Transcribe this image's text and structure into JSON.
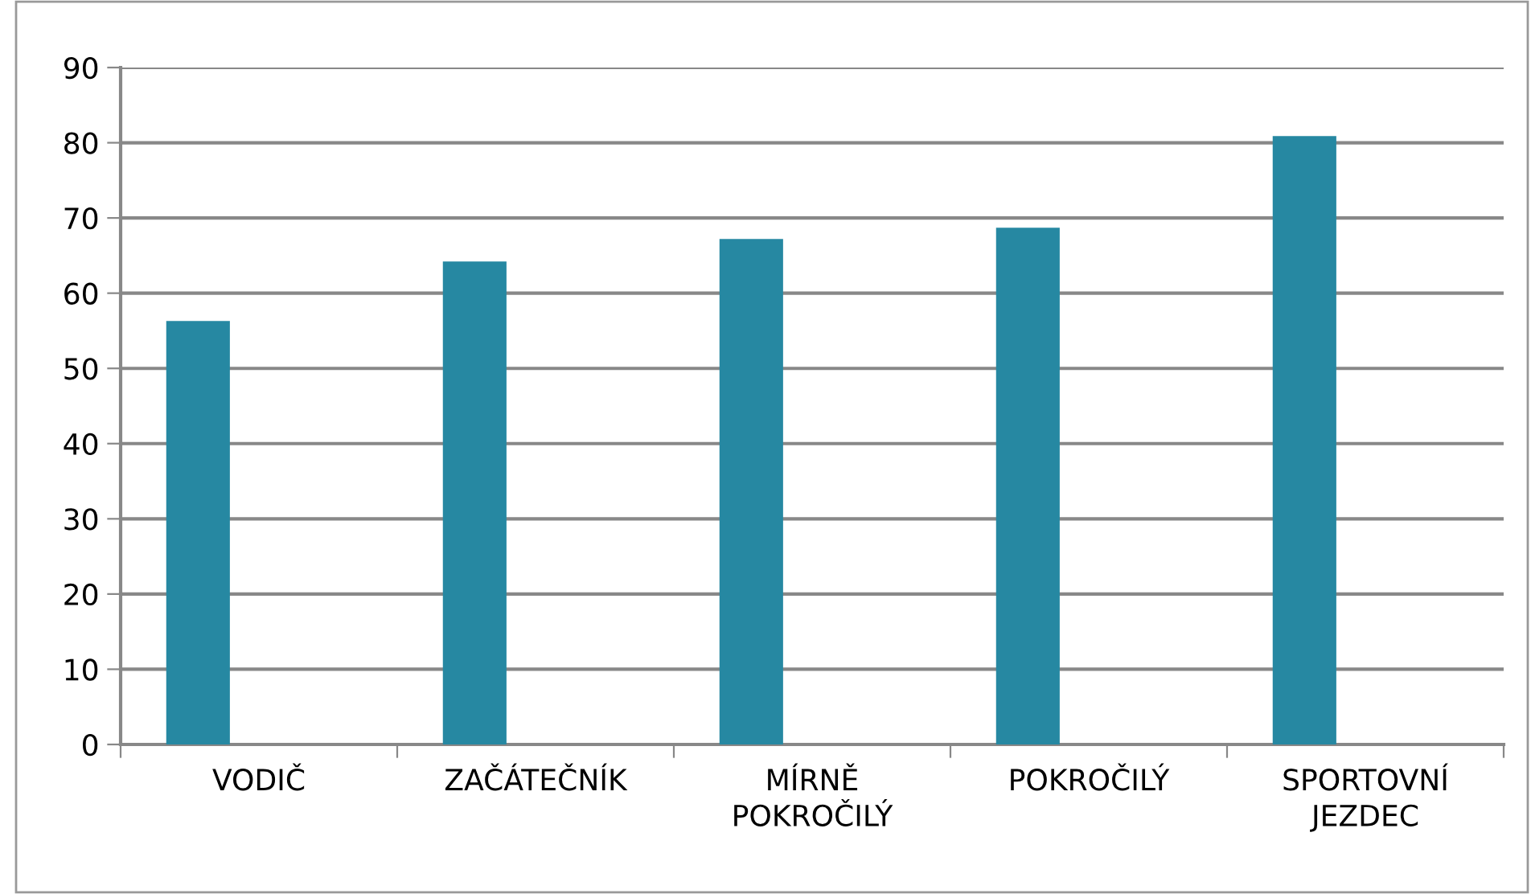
{
  "chart_data": {
    "type": "bar",
    "categories": [
      "VODIČ",
      "ZAČÁTEČNÍK",
      "MÍRNĚ\nPOKROČILÝ",
      "POKROČILÝ",
      "SPORTOVNÍ\nJEZDEC"
    ],
    "values": [
      56.3,
      64.2,
      67.2,
      68.7,
      80.9
    ],
    "color": "#2688a2",
    "ylim": [
      0,
      90
    ],
    "yticks": [
      0,
      10,
      20,
      30,
      40,
      50,
      60,
      70,
      80,
      90
    ],
    "grid": "y"
  }
}
